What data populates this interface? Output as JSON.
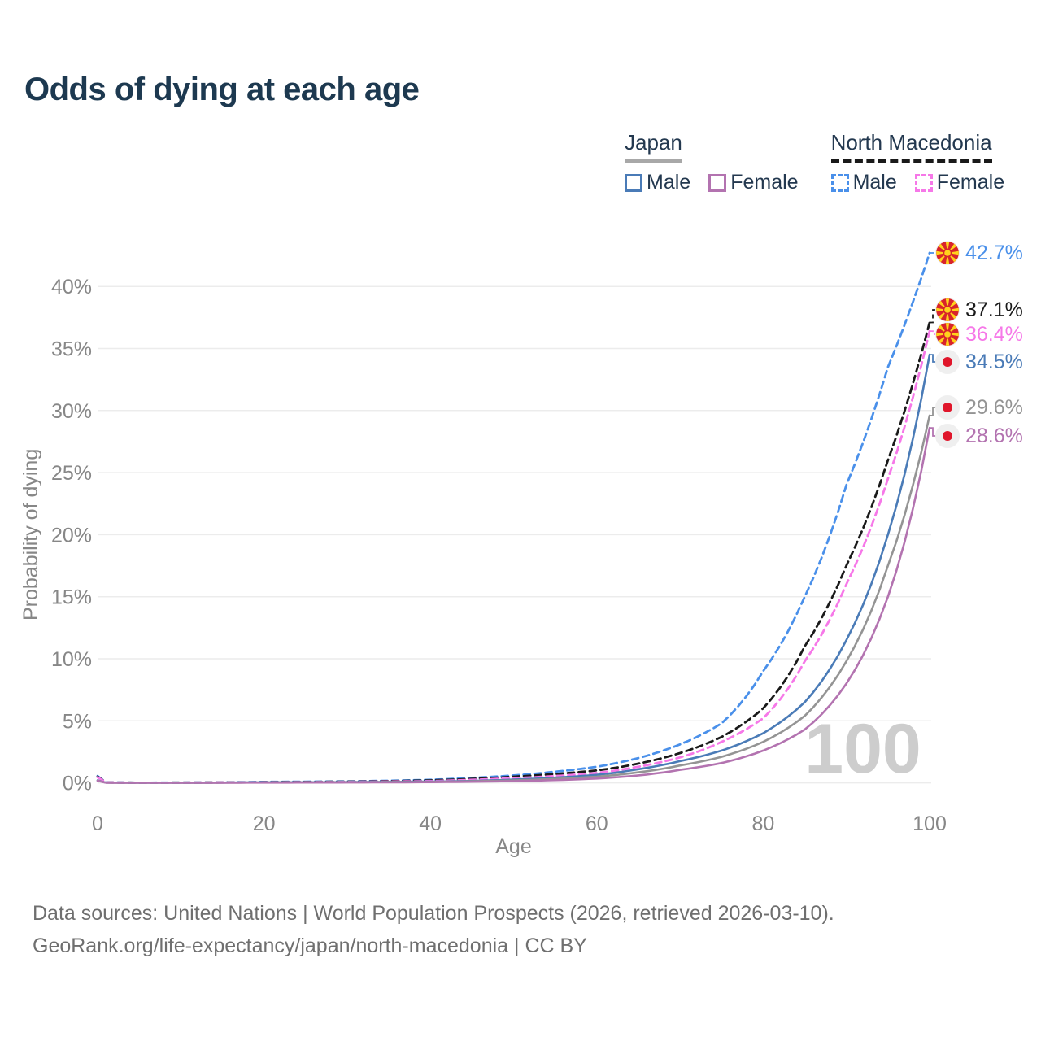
{
  "title": "Odds of dying at each age",
  "legend": {
    "japan": {
      "label": "Japan",
      "male": "Male",
      "female": "Female"
    },
    "nm": {
      "label": "North Macedonia",
      "male": "Male",
      "female": "Female"
    }
  },
  "footer": {
    "line1": "Data sources: United Nations | World Population Prospects (2026, retrieved 2026-03-10).",
    "line2": "GeoRank.org/life-expectancy/japan/north-macedonia | CC BY"
  },
  "colors": {
    "title_text": "#1d3950",
    "legend_text": "#23384f",
    "axis_text": "#878787",
    "gridline": "#ececec",
    "watermark_text": "#cdcdcd",
    "japan_underline": "#a8a8a8",
    "nm_underline": "#1a1a1a",
    "mk_flag_red": "#d8242b",
    "mk_flag_yellow": "#ffd21c",
    "jp_flag_red": "#e0162b",
    "jp_flag_bg": "#efefef"
  },
  "chart_data": {
    "type": "line",
    "title": "Odds of dying at each age",
    "xlabel": "Age",
    "ylabel": "Probability of dying",
    "watermark": "100",
    "xlim": [
      0,
      100
    ],
    "ylim_pct": [
      0,
      43.5
    ],
    "grid": "horizontal-only",
    "legend_position": "top-right",
    "x_ticks": [
      0,
      20,
      40,
      60,
      80,
      100
    ],
    "y_ticks": [
      {
        "v": 0,
        "label": "0%"
      },
      {
        "v": 5,
        "label": "5%"
      },
      {
        "v": 10,
        "label": "10%"
      },
      {
        "v": 15,
        "label": "15%"
      },
      {
        "v": 20,
        "label": "20%"
      },
      {
        "v": 25,
        "label": "25%"
      },
      {
        "v": 30,
        "label": "30%"
      },
      {
        "v": 35,
        "label": "35%"
      },
      {
        "v": 40,
        "label": "40%"
      }
    ],
    "ages": [
      0,
      1,
      5,
      10,
      20,
      30,
      40,
      45,
      50,
      55,
      60,
      65,
      70,
      75,
      80,
      85,
      90,
      95,
      100
    ],
    "series": [
      {
        "name": "North Macedonia — Male",
        "country": "North Macedonia",
        "color": "#4a90ea",
        "dash": true,
        "end_label": "42.7%",
        "end_value": 42.7,
        "values": [
          0.55,
          0.04,
          0.015,
          0.02,
          0.08,
          0.12,
          0.25,
          0.4,
          0.6,
          0.9,
          1.3,
          2.0,
          3.1,
          4.8,
          9.0,
          15.0,
          24.0,
          33.5,
          42.7
        ]
      },
      {
        "name": "North Macedonia — Both sexes",
        "country": "North Macedonia",
        "color": "#1a1a1a",
        "dash": true,
        "end_label": "37.1%",
        "end_value": 37.1,
        "values": [
          0.5,
          0.035,
          0.013,
          0.018,
          0.06,
          0.1,
          0.2,
          0.32,
          0.5,
          0.72,
          1.0,
          1.55,
          2.4,
          3.7,
          6.0,
          11.0,
          17.5,
          26.0,
          37.1
        ]
      },
      {
        "name": "North Macedonia — Female",
        "country": "North Macedonia",
        "color": "#f678e8",
        "dash": true,
        "end_label": "36.4%",
        "end_value": 36.4,
        "values": [
          0.45,
          0.03,
          0.012,
          0.015,
          0.05,
          0.08,
          0.15,
          0.25,
          0.38,
          0.55,
          0.8,
          1.3,
          2.05,
          3.3,
          5.2,
          9.8,
          16.0,
          24.5,
          36.4
        ]
      },
      {
        "name": "Japan — Male",
        "country": "Japan",
        "color": "#4a7bb7",
        "dash": false,
        "end_label": "34.5%",
        "end_value": 34.5,
        "values": [
          0.2,
          0.02,
          0.01,
          0.01,
          0.04,
          0.06,
          0.1,
          0.16,
          0.26,
          0.42,
          0.65,
          1.1,
          1.75,
          2.6,
          4.0,
          6.5,
          11.5,
          20.0,
          34.5
        ]
      },
      {
        "name": "Japan — Both sexes",
        "country": "Japan",
        "color": "#949494",
        "dash": false,
        "end_label": "29.6%",
        "end_value": 29.6,
        "values": [
          0.18,
          0.018,
          0.009,
          0.009,
          0.03,
          0.05,
          0.08,
          0.13,
          0.2,
          0.32,
          0.5,
          0.85,
          1.4,
          2.1,
          3.3,
          5.4,
          9.8,
          17.5,
          29.6
        ]
      },
      {
        "name": "Japan — Female",
        "country": "Japan",
        "color": "#b373b0",
        "dash": false,
        "end_label": "28.6%",
        "end_value": 28.6,
        "values": [
          0.17,
          0.015,
          0.008,
          0.008,
          0.02,
          0.03,
          0.06,
          0.09,
          0.14,
          0.22,
          0.35,
          0.6,
          1.05,
          1.6,
          2.6,
          4.3,
          8.0,
          15.0,
          28.6
        ]
      }
    ]
  }
}
